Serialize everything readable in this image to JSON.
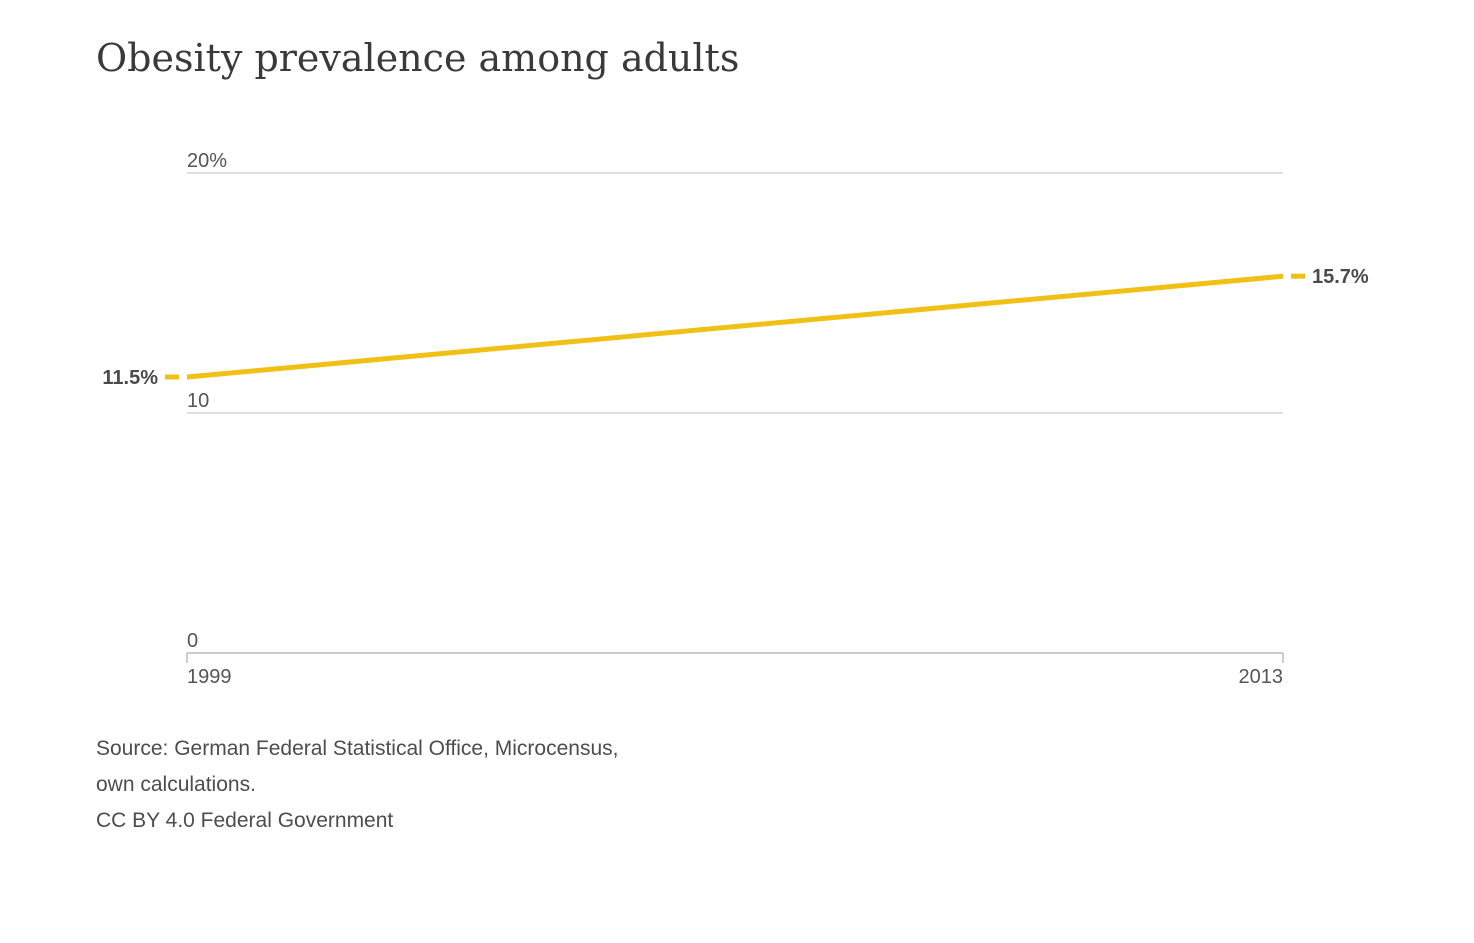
{
  "title": "Obesity prevalence among adults",
  "source": {
    "line1": "Source: German Federal Statistical Office, Microcensus,",
    "line2": "own calculations.",
    "line3": "CC BY 4.0 Federal Government"
  },
  "chart_data": {
    "type": "line",
    "title": "Obesity prevalence among adults",
    "x": [
      "1999",
      "2013"
    ],
    "series": [
      {
        "values": [
          11.5,
          15.7
        ],
        "color": "#f0c015"
      }
    ],
    "ylim": [
      0,
      20
    ],
    "y_ticks": [
      {
        "value": 20,
        "label": "20%"
      },
      {
        "value": 10,
        "label": "10"
      },
      {
        "value": 0,
        "label": "0"
      }
    ],
    "x_ticks": [
      "1999",
      "2013"
    ],
    "data_labels": [
      "11.5%",
      "15.7%"
    ],
    "grid": true,
    "gridline_color": "#cccccc"
  }
}
